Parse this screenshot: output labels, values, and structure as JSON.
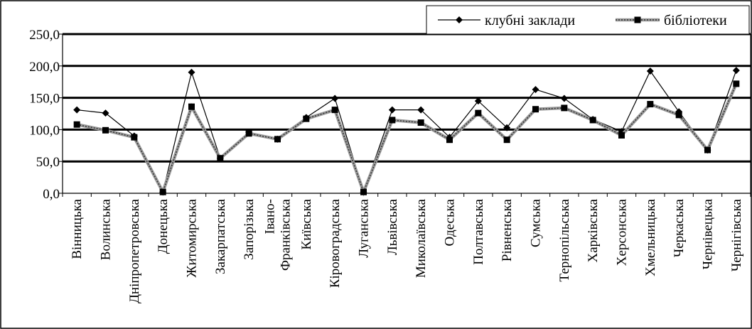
{
  "chart_data": {
    "type": "line",
    "categories": [
      "Вінницька",
      "Волинська",
      "Дніпропетровська",
      "Донецька",
      "Житомирська",
      "Закарпатська",
      "Запорізька",
      "Івано-Франківська",
      "Київська",
      "Кіровоградська",
      "Луганська",
      "Львівська",
      "Миколаївська",
      "Одеська",
      "Полтавська",
      "Рівненська",
      "Сумська",
      "Тернопільська",
      "Харківська",
      "Херсонська",
      "Хмельницька",
      "Черкаська",
      "Чернівецька",
      "Чернігівська"
    ],
    "y_ticks": [
      "0,0",
      "50,0",
      "100,0",
      "150,0",
      "200,0",
      "250,0"
    ],
    "ylim": [
      0,
      250
    ],
    "grid": true,
    "legend_position": "top-right",
    "series": [
      {
        "name": "клубні заклади",
        "marker": "diamond",
        "color": "#000000",
        "values": [
          131,
          126,
          90,
          2,
          190,
          55,
          96,
          85,
          119,
          149,
          2,
          131,
          131,
          88,
          145,
          103,
          163,
          149,
          116,
          97,
          192,
          128,
          68,
          193
        ]
      },
      {
        "name": "бібліотеки",
        "marker": "square",
        "color": "#000000",
        "values": [
          108,
          99,
          88,
          2,
          136,
          55,
          94,
          85,
          117,
          131,
          2,
          115,
          111,
          84,
          126,
          84,
          132,
          134,
          115,
          91,
          140,
          123,
          68,
          172
        ]
      }
    ]
  }
}
